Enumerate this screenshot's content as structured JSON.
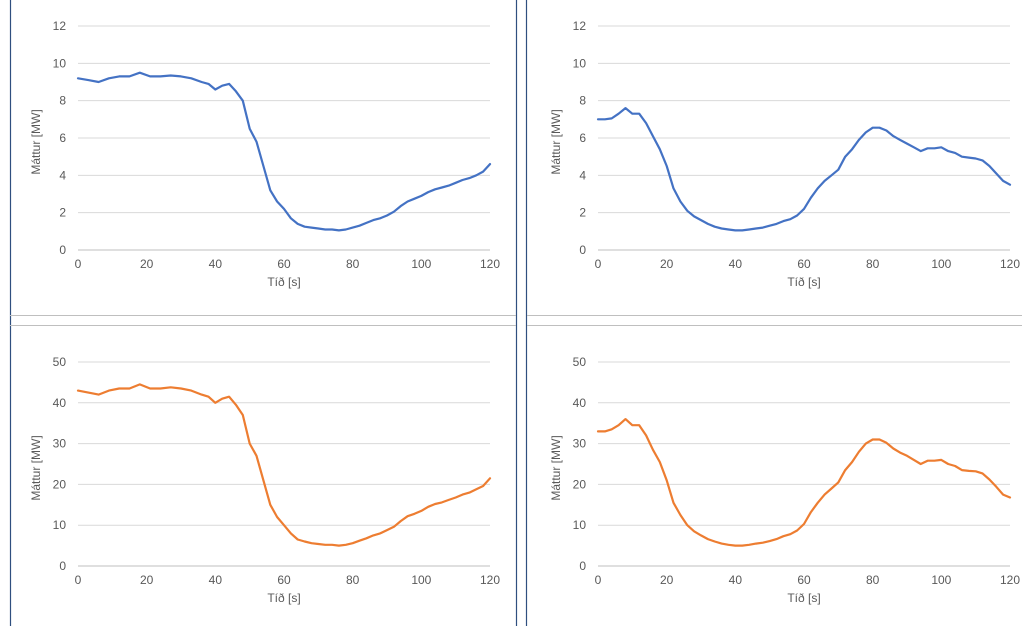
{
  "layout": "2x2",
  "chart_data": [
    {
      "type": "line",
      "position": "top-left",
      "xlabel": "Tíð [s]",
      "ylabel": "Máttur [MW]",
      "xlim": [
        0,
        120
      ],
      "ylim": [
        0,
        12
      ],
      "xticks": [
        "0",
        "20",
        "40",
        "60",
        "80",
        "100",
        "120"
      ],
      "yticks": [
        "0",
        "2",
        "4",
        "6",
        "8",
        "10",
        "12"
      ],
      "grid": true,
      "legend": "none",
      "series": [
        {
          "color": "#4472C4",
          "x": [
            0,
            3,
            6,
            9,
            12,
            15,
            18,
            21,
            24,
            27,
            30,
            33,
            36,
            38,
            40,
            42,
            44,
            46,
            48,
            50,
            52,
            54,
            56,
            58,
            60,
            62,
            64,
            66,
            68,
            70,
            72,
            74,
            76,
            78,
            80,
            82,
            84,
            86,
            88,
            90,
            92,
            94,
            96,
            98,
            100,
            102,
            104,
            106,
            108,
            110,
            112,
            114,
            116,
            118,
            120
          ],
          "y": [
            9.2,
            9.1,
            9.0,
            9.2,
            9.3,
            9.3,
            9.5,
            9.3,
            9.3,
            9.35,
            9.3,
            9.2,
            9.0,
            8.9,
            8.6,
            8.8,
            8.9,
            8.5,
            8.0,
            6.5,
            5.8,
            4.5,
            3.2,
            2.6,
            2.2,
            1.7,
            1.4,
            1.25,
            1.2,
            1.15,
            1.1,
            1.1,
            1.05,
            1.1,
            1.2,
            1.3,
            1.45,
            1.6,
            1.7,
            1.85,
            2.05,
            2.35,
            2.6,
            2.75,
            2.9,
            3.1,
            3.25,
            3.35,
            3.45,
            3.6,
            3.75,
            3.85,
            4.0,
            4.2,
            4.6
          ]
        }
      ]
    },
    {
      "type": "line",
      "position": "top-right",
      "xlabel": "Tíð [s]",
      "ylabel": "Máttur [MW]",
      "xlim": [
        0,
        120
      ],
      "ylim": [
        0,
        12
      ],
      "xticks": [
        "0",
        "20",
        "40",
        "60",
        "80",
        "100",
        "120"
      ],
      "yticks": [
        "0",
        "2",
        "4",
        "6",
        "8",
        "10",
        "12"
      ],
      "grid": true,
      "legend": "none",
      "series": [
        {
          "color": "#4472C4",
          "x": [
            0,
            2,
            4,
            6,
            8,
            10,
            12,
            14,
            16,
            18,
            20,
            22,
            24,
            26,
            28,
            30,
            32,
            34,
            36,
            38,
            40,
            42,
            44,
            46,
            48,
            50,
            52,
            54,
            56,
            58,
            60,
            62,
            64,
            66,
            68,
            70,
            72,
            74,
            76,
            78,
            80,
            82,
            84,
            86,
            88,
            90,
            92,
            94,
            96,
            98,
            100,
            102,
            104,
            106,
            108,
            110,
            112,
            114,
            116,
            118,
            120
          ],
          "y": [
            7.0,
            7.0,
            7.05,
            7.3,
            7.6,
            7.3,
            7.3,
            6.8,
            6.1,
            5.4,
            4.5,
            3.3,
            2.6,
            2.1,
            1.8,
            1.6,
            1.4,
            1.25,
            1.15,
            1.1,
            1.05,
            1.05,
            1.1,
            1.15,
            1.2,
            1.3,
            1.4,
            1.55,
            1.65,
            1.85,
            2.2,
            2.8,
            3.3,
            3.7,
            4.0,
            4.3,
            5.0,
            5.4,
            5.9,
            6.3,
            6.55,
            6.55,
            6.4,
            6.1,
            5.9,
            5.7,
            5.5,
            5.3,
            5.45,
            5.45,
            5.5,
            5.3,
            5.2,
            5.0,
            4.95,
            4.9,
            4.8,
            4.5,
            4.1,
            3.7,
            3.5
          ]
        }
      ]
    },
    {
      "type": "line",
      "position": "bottom-left",
      "xlabel": "Tíð [s]",
      "ylabel": "Máttur [MW]",
      "xlim": [
        0,
        120
      ],
      "ylim": [
        0,
        50
      ],
      "xticks": [
        "0",
        "20",
        "40",
        "60",
        "80",
        "100",
        "120"
      ],
      "yticks": [
        "0",
        "10",
        "20",
        "30",
        "40",
        "50"
      ],
      "grid": true,
      "legend": "none",
      "series": [
        {
          "color": "#ED7D31",
          "x": [
            0,
            3,
            6,
            9,
            12,
            15,
            18,
            21,
            24,
            27,
            30,
            33,
            36,
            38,
            40,
            42,
            44,
            46,
            48,
            50,
            52,
            54,
            56,
            58,
            60,
            62,
            64,
            66,
            68,
            70,
            72,
            74,
            76,
            78,
            80,
            82,
            84,
            86,
            88,
            90,
            92,
            94,
            96,
            98,
            100,
            102,
            104,
            106,
            108,
            110,
            112,
            114,
            116,
            118,
            120
          ],
          "y": [
            43.0,
            42.5,
            42.0,
            43.0,
            43.5,
            43.5,
            44.5,
            43.5,
            43.5,
            43.8,
            43.5,
            43.0,
            42.0,
            41.5,
            40.0,
            41.0,
            41.5,
            39.5,
            37.0,
            30.0,
            27.0,
            21.0,
            15.0,
            12.0,
            10.0,
            8.0,
            6.5,
            6.0,
            5.6,
            5.4,
            5.2,
            5.2,
            5.0,
            5.2,
            5.6,
            6.2,
            6.8,
            7.5,
            8.0,
            8.8,
            9.6,
            11.0,
            12.2,
            12.8,
            13.5,
            14.5,
            15.2,
            15.6,
            16.2,
            16.8,
            17.5,
            18.0,
            18.8,
            19.6,
            21.5
          ]
        }
      ]
    },
    {
      "type": "line",
      "position": "bottom-right",
      "xlabel": "Tíð [s]",
      "ylabel": "Máttur [MW]",
      "xlim": [
        0,
        120
      ],
      "ylim": [
        0,
        50
      ],
      "xticks": [
        "0",
        "20",
        "40",
        "60",
        "80",
        "100",
        "120"
      ],
      "yticks": [
        "0",
        "10",
        "20",
        "30",
        "40",
        "50"
      ],
      "grid": true,
      "legend": "none",
      "series": [
        {
          "color": "#ED7D31",
          "x": [
            0,
            2,
            4,
            6,
            8,
            10,
            12,
            14,
            16,
            18,
            20,
            22,
            24,
            26,
            28,
            30,
            32,
            34,
            36,
            38,
            40,
            42,
            44,
            46,
            48,
            50,
            52,
            54,
            56,
            58,
            60,
            62,
            64,
            66,
            68,
            70,
            72,
            74,
            76,
            78,
            80,
            82,
            84,
            86,
            88,
            90,
            92,
            94,
            96,
            98,
            100,
            102,
            104,
            106,
            108,
            110,
            112,
            114,
            116,
            118,
            120
          ],
          "y": [
            33.0,
            33.0,
            33.5,
            34.5,
            36.0,
            34.5,
            34.5,
            32.0,
            28.5,
            25.5,
            21.0,
            15.5,
            12.5,
            10.0,
            8.5,
            7.5,
            6.6,
            6.0,
            5.5,
            5.2,
            5.0,
            5.0,
            5.2,
            5.5,
            5.7,
            6.1,
            6.6,
            7.3,
            7.8,
            8.7,
            10.3,
            13.2,
            15.5,
            17.5,
            19.0,
            20.5,
            23.5,
            25.5,
            28.0,
            30.0,
            31.0,
            31.0,
            30.2,
            28.8,
            27.8,
            27.0,
            26.0,
            25.0,
            25.8,
            25.8,
            26.0,
            25.0,
            24.5,
            23.5,
            23.3,
            23.2,
            22.7,
            21.2,
            19.4,
            17.5,
            16.8
          ]
        }
      ]
    }
  ]
}
